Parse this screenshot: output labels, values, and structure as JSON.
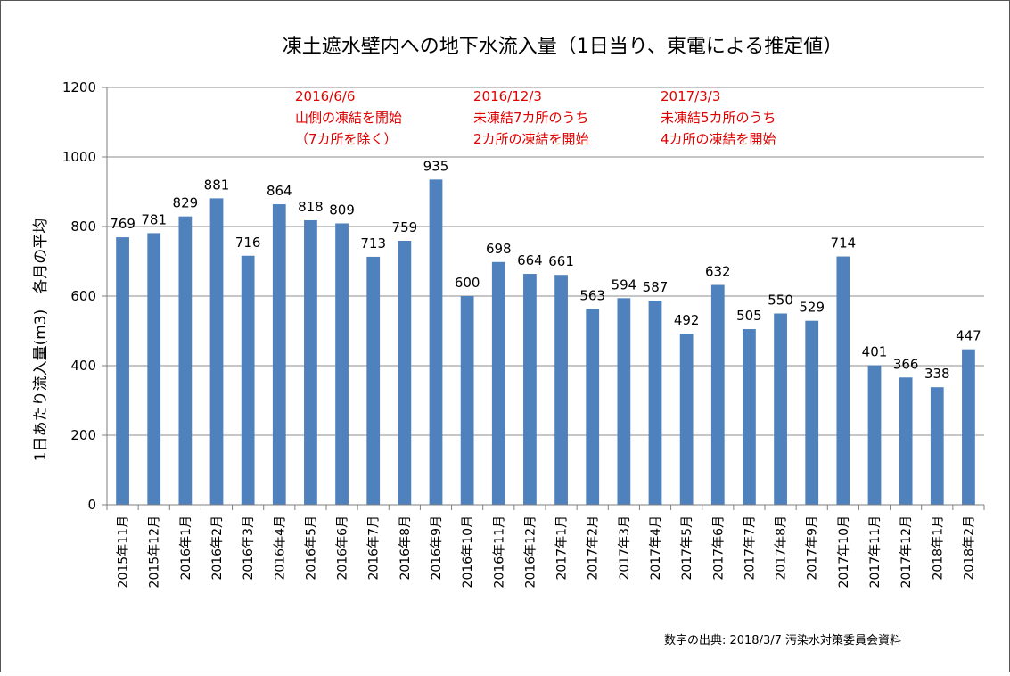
{
  "chart_data": {
    "type": "bar",
    "title": "凍土遮水壁内への地下水流入量（1日当り、東電による推定値）",
    "ylabel": "1日あたり流入量(m3)　各月の平均",
    "xlabel": "",
    "ylim": [
      0,
      1200
    ],
    "yticks": [
      0,
      200,
      400,
      600,
      800,
      1000,
      1200
    ],
    "grid": true,
    "bar_color": "#4f81bd",
    "categories": [
      "2015年11月",
      "2015年12月",
      "2016年1月",
      "2016年2月",
      "2016年3月",
      "2016年4月",
      "2016年5月",
      "2016年6月",
      "2016年7月",
      "2016年8月",
      "2016年9月",
      "2016年10月",
      "2016年11月",
      "2016年12月",
      "2017年1月",
      "2017年2月",
      "2017年3月",
      "2017年4月",
      "2017年5月",
      "2017年6月",
      "2017年7月",
      "2017年8月",
      "2017年9月",
      "2017年10月",
      "2017年11月",
      "2017年12月",
      "2018年1月",
      "2018年2月"
    ],
    "values": [
      769,
      781,
      829,
      881,
      716,
      864,
      818,
      809,
      713,
      759,
      935,
      600,
      698,
      664,
      661,
      563,
      594,
      587,
      492,
      632,
      505,
      550,
      529,
      714,
      401,
      366,
      338,
      447
    ],
    "annotations": [
      {
        "lines": [
          "2016/6/6",
          "山側の凍結を開始",
          "（7カ所を除く）"
        ],
        "color": "#e00000"
      },
      {
        "lines": [
          "2016/12/3",
          "未凍結7カ所のうち",
          "2カ所の凍結を開始"
        ],
        "color": "#e00000"
      },
      {
        "lines": [
          "2017/3/3",
          "未凍結5カ所のうち",
          "4カ所の凍結を開始"
        ],
        "color": "#e00000"
      }
    ],
    "source": "数字の出典: 2018/3/7 汚染水対策委員会資料"
  }
}
